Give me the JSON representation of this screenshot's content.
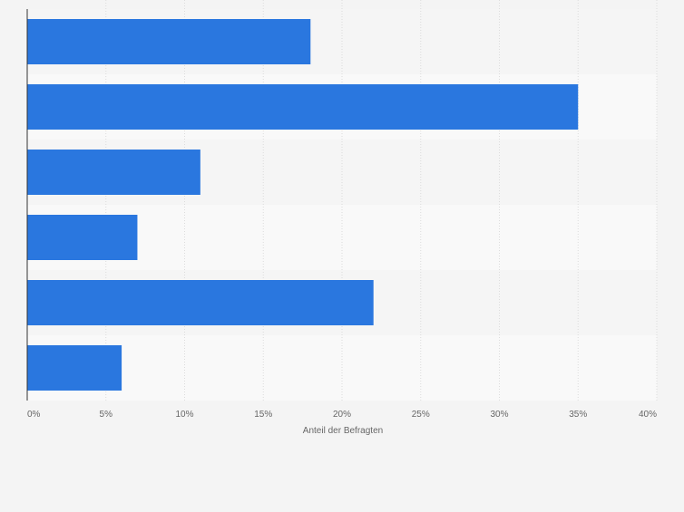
{
  "chart_data": {
    "type": "bar",
    "orientation": "horizontal",
    "categories": [
      "",
      "",
      "",
      "",
      "",
      ""
    ],
    "values": [
      18,
      35,
      11,
      7,
      22,
      6
    ],
    "xlabel": "Anteil der Befragten",
    "ylabel": "",
    "xlim": [
      0,
      40
    ],
    "tick_labels": [
      "0%",
      "5%",
      "10%",
      "15%",
      "20%",
      "25%",
      "30%",
      "35%",
      "40%"
    ],
    "grid": true,
    "legend": "none",
    "colors": {
      "bar": "#2a77df",
      "band_odd": "#f5f5f5",
      "band_even": "#f9f9f9",
      "grid": "#dcdcdc",
      "axis": "#333333",
      "text": "#666666"
    }
  }
}
